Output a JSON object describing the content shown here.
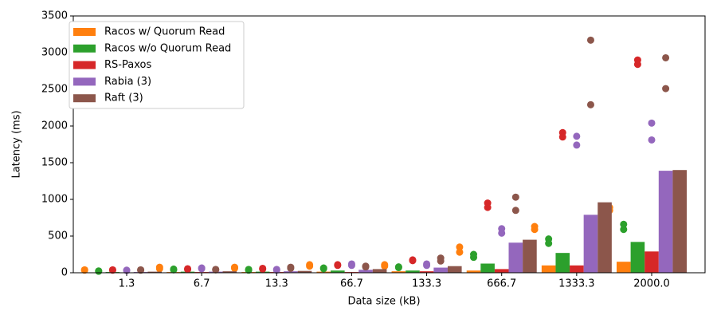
{
  "chart_data": {
    "type": "bar",
    "xlabel": "Data size (kB)",
    "ylabel": "Latency (ms)",
    "categories": [
      "1.3",
      "6.7",
      "13.3",
      "66.7",
      "133.3",
      "666.7",
      "1333.3",
      "2000.0"
    ],
    "ylim": [
      0,
      3500
    ],
    "yticks": [
      0,
      500,
      1000,
      1500,
      2000,
      2500,
      3000,
      3500
    ],
    "grid": false,
    "legend": "upper left",
    "series": [
      {
        "name": "Racos w/ Quorum Read",
        "color": "#ff7f0e",
        "values": [
          5,
          10,
          10,
          15,
          20,
          30,
          100,
          150
        ],
        "dots": [
          [
            40,
            35
          ],
          [
            75,
            55
          ],
          [
            75,
            60
          ],
          [
            110,
            90
          ],
          [
            110,
            90
          ],
          [
            350,
            280
          ],
          [
            630,
            590
          ],
          [
            890,
            850
          ]
        ]
      },
      {
        "name": "Racos w/o Quorum Read",
        "color": "#2ca02c",
        "values": [
          10,
          15,
          15,
          30,
          30,
          125,
          270,
          420
        ],
        "dots": [
          [
            25,
            20
          ],
          [
            50,
            40
          ],
          [
            45,
            35
          ],
          [
            65,
            55
          ],
          [
            80,
            70
          ],
          [
            250,
            210
          ],
          [
            460,
            400
          ],
          [
            660,
            590
          ]
        ]
      },
      {
        "name": "RS-Paxos",
        "color": "#d62728",
        "values": [
          5,
          10,
          10,
          10,
          20,
          50,
          100,
          290
        ],
        "dots": [
          [
            40,
            35
          ],
          [
            55,
            45
          ],
          [
            60,
            50
          ],
          [
            110,
            100
          ],
          [
            175,
            165
          ],
          [
            950,
            890
          ],
          [
            1910,
            1850
          ],
          [
            2900,
            2840
          ]
        ]
      },
      {
        "name": "Rabia (3)",
        "color": "#9467bd",
        "values": [
          10,
          15,
          20,
          40,
          70,
          410,
          790,
          1390
        ],
        "dots": [
          [
            35,
            30
          ],
          [
            65,
            55
          ],
          [
            45,
            35
          ],
          [
            120,
            100
          ],
          [
            120,
            100
          ],
          [
            600,
            540
          ],
          [
            1860,
            1740
          ],
          [
            2040,
            1810
          ]
        ]
      },
      {
        "name": "Raft (3)",
        "color": "#8c564b",
        "values": [
          15,
          20,
          25,
          50,
          90,
          450,
          960,
          1400
        ],
        "dots": [
          [
            40,
            35
          ],
          [
            45,
            40
          ],
          [
            75,
            60
          ],
          [
            90,
            80
          ],
          [
            200,
            160
          ],
          [
            1030,
            850
          ],
          [
            3170,
            2290
          ],
          [
            2930,
            2510
          ]
        ]
      }
    ]
  }
}
